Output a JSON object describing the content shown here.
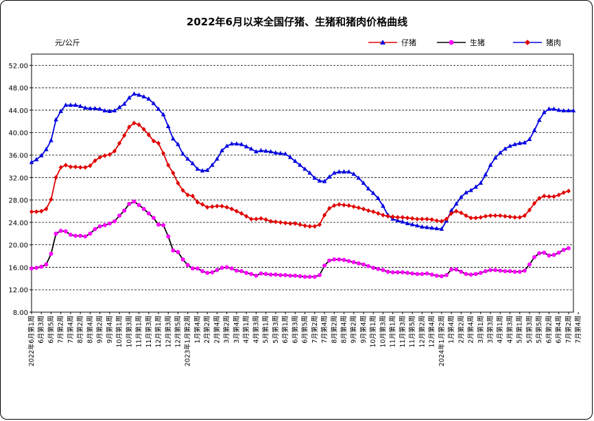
{
  "chart_data": {
    "type": "line",
    "title": "2022年6月以来全国仔猪、生猪和猪肉价格曲线",
    "ylabel": "元/公斤",
    "ylim": [
      8,
      54
    ],
    "yticks": [
      "8.00",
      "12.00",
      "16.00",
      "20.00",
      "24.00",
      "28.00",
      "32.00",
      "36.00",
      "40.00",
      "44.00",
      "48.00",
      "52.00"
    ],
    "grid": true,
    "legend_position": "top-right",
    "x_labels": [
      "2022年6月第1周",
      "6月第3周",
      "6月第5周",
      "7月第2周",
      "7月第4周",
      "8月第2周",
      "8月第4周",
      "9月第2周",
      "9月第4周",
      "10月第1周",
      "10月第3周",
      "11月第1周",
      "11月第3周",
      "12月第1周",
      "12月第3周",
      "12月第5周",
      "2023年1月第2周",
      "1月第4周",
      "2月第2周",
      "2月第4周",
      "3月第2周",
      "3月第4周",
      "4月第1周",
      "4月第3周",
      "5月第1周",
      "5月第3周",
      "6月第1周",
      "6月第3周",
      "6月第5周",
      "7月第2周",
      "7月第4周",
      "8月第2周",
      "8月第4周",
      "9月第2周",
      "9月第4周",
      "10月第1周",
      "10月第3周",
      "11月第1周",
      "11月第3周",
      "11月第5周",
      "12月第2周",
      "12月第4周",
      "2024年1月第2周",
      "1月第4周",
      "2月第2周",
      "2月第4周",
      "3月第1周",
      "3月第3周",
      "4月第1周",
      "4月第3周",
      "5月第1周",
      "5月第3周",
      "5月第5周",
      "6月第2周",
      "6月第4周",
      "7月第2周",
      "7月第4周"
    ],
    "series": [
      {
        "name": "仔猪",
        "color": "#e00000",
        "marker": "triangle",
        "values": [
          34.7,
          35.2,
          35.9,
          37.0,
          38.6,
          42.3,
          43.8,
          44.9,
          44.9,
          44.9,
          44.7,
          44.4,
          44.3,
          44.3,
          44.2,
          43.9,
          43.8,
          43.9,
          44.5,
          45.1,
          46.2,
          46.9,
          46.7,
          46.4,
          46.0,
          45.2,
          44.2,
          43.2,
          41.1,
          38.9,
          37.9,
          36.2,
          35.3,
          34.5,
          33.5,
          33.2,
          33.3,
          34.2,
          35.3,
          36.8,
          37.6,
          38.0,
          38.0,
          37.9,
          37.5,
          37.1,
          36.6,
          36.8,
          36.7,
          36.6,
          36.4,
          36.3,
          36.2,
          35.6,
          34.9,
          34.2,
          33.5,
          32.8,
          31.9,
          31.4,
          31.3,
          32.1,
          32.8,
          33.0,
          33.0,
          33.0,
          32.6,
          31.9,
          31.0,
          30.0,
          29.2,
          28.3,
          26.9,
          25.3,
          24.6,
          24.3,
          24.1,
          23.8,
          23.6,
          23.4,
          23.2,
          23.1,
          23.0,
          22.9,
          22.8,
          24.3,
          26.1,
          27.3,
          28.5,
          29.3,
          29.7,
          30.3,
          31.0,
          32.5,
          34.2,
          35.5,
          36.4,
          37.1,
          37.6,
          37.9,
          38.1,
          38.2,
          38.8,
          40.4,
          42.2,
          43.6,
          44.2,
          44.2,
          44.0,
          43.9,
          43.9,
          43.9
        ]
      },
      {
        "name": "生猪",
        "color": "#000000",
        "marker": "circle",
        "values": [
          15.8,
          15.9,
          16.1,
          16.5,
          18.4,
          22.0,
          22.5,
          22.4,
          21.8,
          21.6,
          21.6,
          21.5,
          22.0,
          22.8,
          23.3,
          23.5,
          23.8,
          24.2,
          25.2,
          26.1,
          27.3,
          27.7,
          27.1,
          26.4,
          25.6,
          24.8,
          23.6,
          23.5,
          21.5,
          19.0,
          18.7,
          17.4,
          16.4,
          15.8,
          15.8,
          15.3,
          15.0,
          15.1,
          15.5,
          15.9,
          16.0,
          15.8,
          15.4,
          15.3,
          15.0,
          14.8,
          14.5,
          14.9,
          14.8,
          14.7,
          14.7,
          14.6,
          14.6,
          14.5,
          14.5,
          14.4,
          14.3,
          14.3,
          14.3,
          14.6,
          16.3,
          17.2,
          17.4,
          17.4,
          17.3,
          17.1,
          16.9,
          16.7,
          16.5,
          16.2,
          15.9,
          15.7,
          15.5,
          15.2,
          15.1,
          15.1,
          15.1,
          15.0,
          14.9,
          14.8,
          14.8,
          14.9,
          14.7,
          14.5,
          14.4,
          14.6,
          15.6,
          15.6,
          15.2,
          14.8,
          14.7,
          14.8,
          15.0,
          15.3,
          15.5,
          15.5,
          15.4,
          15.3,
          15.3,
          15.2,
          15.2,
          15.4,
          16.5,
          17.8,
          18.5,
          18.6,
          18.1,
          18.2,
          18.6,
          19.1,
          19.4
        ]
      },
      {
        "name": "猪肉",
        "color": "#0000e0",
        "marker": "diamond",
        "values": [
          25.9,
          25.9,
          26.0,
          26.4,
          28.1,
          32.0,
          33.8,
          34.2,
          33.9,
          33.9,
          33.8,
          33.8,
          34.1,
          35.0,
          35.6,
          35.9,
          36.1,
          36.7,
          38.1,
          39.5,
          41.0,
          41.7,
          41.4,
          40.6,
          39.6,
          38.5,
          38.1,
          36.3,
          34.2,
          32.8,
          31.0,
          29.7,
          28.9,
          28.7,
          27.6,
          27.2,
          26.7,
          26.8,
          26.9,
          26.9,
          26.7,
          26.4,
          26.0,
          25.6,
          25.1,
          24.6,
          24.6,
          24.7,
          24.5,
          24.2,
          24.1,
          24.0,
          23.9,
          23.8,
          23.8,
          23.6,
          23.4,
          23.3,
          23.3,
          23.6,
          25.3,
          26.5,
          27.0,
          27.2,
          27.1,
          27.0,
          26.8,
          26.6,
          26.4,
          26.1,
          25.9,
          25.6,
          25.3,
          25.1,
          25.0,
          24.9,
          24.9,
          24.8,
          24.7,
          24.6,
          24.6,
          24.6,
          24.5,
          24.3,
          24.2,
          24.6,
          25.6,
          26.0,
          25.7,
          25.2,
          24.8,
          24.8,
          24.9,
          25.1,
          25.2,
          25.2,
          25.2,
          25.1,
          25.0,
          24.9,
          24.9,
          25.2,
          26.2,
          27.4,
          28.3,
          28.7,
          28.6,
          28.6,
          28.9,
          29.3,
          29.6
        ]
      }
    ]
  }
}
